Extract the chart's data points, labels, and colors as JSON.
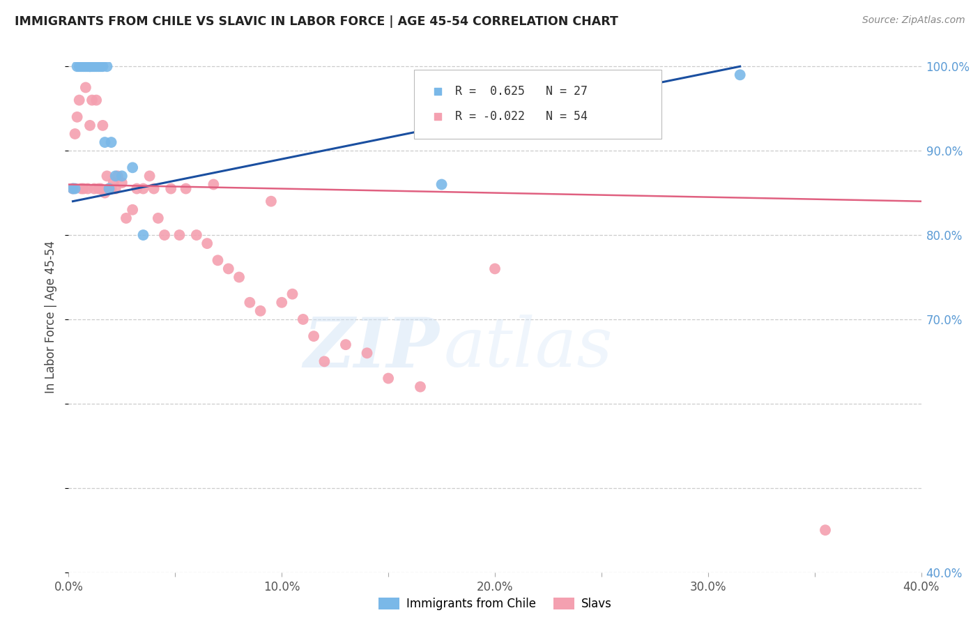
{
  "title": "IMMIGRANTS FROM CHILE VS SLAVIC IN LABOR FORCE | AGE 45-54 CORRELATION CHART",
  "source": "Source: ZipAtlas.com",
  "ylabel": "In Labor Force | Age 45-54",
  "xlim": [
    0.0,
    0.4
  ],
  "ylim": [
    0.4,
    1.005
  ],
  "xticks": [
    0.0,
    0.05,
    0.1,
    0.15,
    0.2,
    0.25,
    0.3,
    0.35,
    0.4
  ],
  "xticklabels": [
    "0.0%",
    "",
    "10.0%",
    "",
    "20.0%",
    "",
    "30.0%",
    "",
    "40.0%"
  ],
  "yticks_right": [
    0.4,
    0.5,
    0.6,
    0.7,
    0.8,
    0.9,
    1.0
  ],
  "yticklabels_right": [
    "40.0%",
    "",
    "",
    "70.0%",
    "80.0%",
    "90.0%",
    "100.0%"
  ],
  "chile_color": "#7ab8e8",
  "slavic_color": "#f4a0b0",
  "legend_R_chile": "R =  0.625",
  "legend_N_chile": "N = 27",
  "legend_R_slavic": "R = -0.022",
  "legend_N_slavic": "N = 54",
  "watermark_zip": "ZIP",
  "watermark_atlas": "atlas",
  "background_color": "#ffffff",
  "grid_color": "#cccccc",
  "right_axis_color": "#5b9bd5",
  "chile_line_color": "#1a4fa0",
  "slavic_line_color": "#e06080",
  "chile_scatter_x": [
    0.002,
    0.003,
    0.004,
    0.005,
    0.006,
    0.007,
    0.008,
    0.009,
    0.01,
    0.01,
    0.011,
    0.012,
    0.013,
    0.014,
    0.015,
    0.016,
    0.017,
    0.018,
    0.019,
    0.02,
    0.022,
    0.025,
    0.03,
    0.035,
    0.175,
    0.27,
    0.315
  ],
  "chile_scatter_y": [
    0.855,
    0.855,
    1.0,
    1.0,
    1.0,
    1.0,
    1.0,
    1.0,
    1.0,
    1.0,
    1.0,
    1.0,
    1.0,
    1.0,
    1.0,
    1.0,
    0.91,
    1.0,
    0.855,
    0.91,
    0.87,
    0.87,
    0.88,
    0.8,
    0.86,
    0.95,
    0.99
  ],
  "slavic_scatter_x": [
    0.002,
    0.003,
    0.004,
    0.005,
    0.006,
    0.007,
    0.008,
    0.009,
    0.01,
    0.011,
    0.012,
    0.013,
    0.014,
    0.015,
    0.016,
    0.017,
    0.018,
    0.019,
    0.02,
    0.021,
    0.022,
    0.023,
    0.025,
    0.027,
    0.03,
    0.032,
    0.035,
    0.038,
    0.04,
    0.042,
    0.045,
    0.048,
    0.052,
    0.055,
    0.06,
    0.065,
    0.068,
    0.07,
    0.075,
    0.08,
    0.085,
    0.09,
    0.095,
    0.1,
    0.105,
    0.11,
    0.115,
    0.12,
    0.13,
    0.14,
    0.15,
    0.165,
    0.2,
    0.355
  ],
  "slavic_scatter_y": [
    0.855,
    0.92,
    0.94,
    0.96,
    0.855,
    0.855,
    0.975,
    0.855,
    0.93,
    0.96,
    0.855,
    0.96,
    0.855,
    0.855,
    0.93,
    0.85,
    0.87,
    0.855,
    0.855,
    0.862,
    0.855,
    0.87,
    0.862,
    0.82,
    0.83,
    0.855,
    0.855,
    0.87,
    0.855,
    0.82,
    0.8,
    0.855,
    0.8,
    0.855,
    0.8,
    0.79,
    0.86,
    0.77,
    0.76,
    0.75,
    0.72,
    0.71,
    0.84,
    0.72,
    0.73,
    0.7,
    0.68,
    0.65,
    0.67,
    0.66,
    0.63,
    0.62,
    0.76,
    0.45
  ],
  "chile_line_x": [
    0.002,
    0.315
  ],
  "chile_line_y": [
    0.84,
    1.0
  ],
  "slavic_line_x": [
    0.0,
    0.4
  ],
  "slavic_line_y": [
    0.86,
    0.84
  ]
}
